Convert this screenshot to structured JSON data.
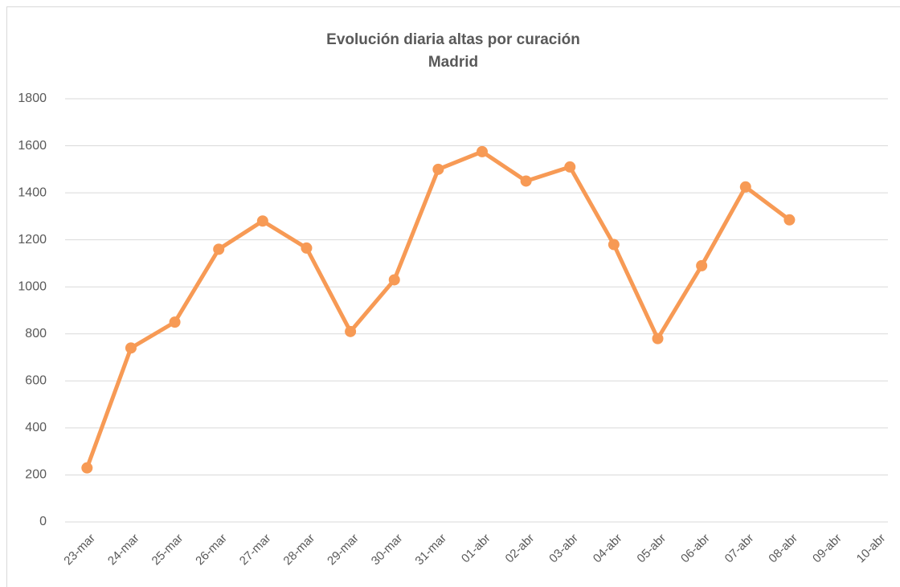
{
  "chart_data": {
    "type": "line",
    "title": "Evolución diaria altas por curación",
    "subtitle": "Madrid",
    "categories": [
      "23-mar",
      "24-mar",
      "25-mar",
      "26-mar",
      "27-mar",
      "28-mar",
      "29-mar",
      "30-mar",
      "31-mar",
      "01-abr",
      "02-abr",
      "03-abr",
      "04-abr",
      "05-abr",
      "06-abr",
      "07-abr",
      "08-abr",
      "09-abr",
      "10-abr"
    ],
    "series": [
      {
        "color": "#f79a55",
        "values": [
          230,
          740,
          850,
          1160,
          1280,
          1165,
          810,
          1030,
          1500,
          1575,
          1450,
          1510,
          1180,
          780,
          1090,
          1425,
          1285,
          null,
          null
        ]
      }
    ],
    "ylim": [
      0,
      1800
    ],
    "yticks": [
      0,
      200,
      400,
      600,
      800,
      1000,
      1200,
      1400,
      1600,
      1800
    ],
    "grid": true
  }
}
